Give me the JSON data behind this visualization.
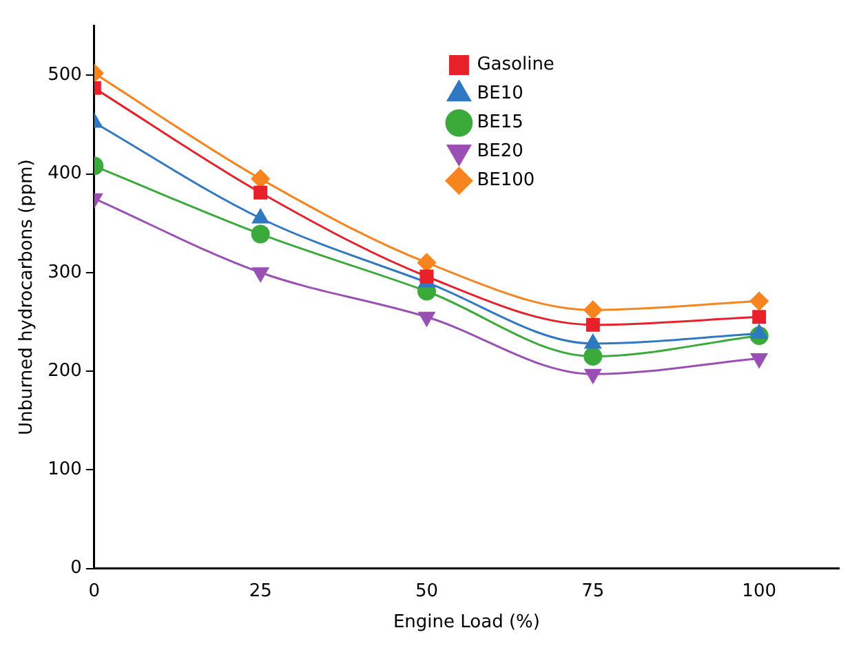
{
  "chart_data": {
    "type": "line",
    "xlabel": "Engine Load (%)",
    "ylabel": "Unburned hydrocarbons (ppm)",
    "x": [
      0,
      25,
      50,
      75,
      100
    ],
    "series": [
      {
        "name": "Gasoline",
        "color": "#e8202a",
        "marker": "square",
        "values": [
          487,
          381,
          296,
          247,
          255
        ]
      },
      {
        "name": "BE10",
        "color": "#2f78c2",
        "marker": "triangle",
        "values": [
          452,
          355,
          290,
          228,
          238
        ]
      },
      {
        "name": "BE15",
        "color": "#3aaa3a",
        "marker": "circle",
        "values": [
          408,
          339,
          281,
          215,
          236
        ]
      },
      {
        "name": "BE20",
        "color": "#9b4fb5",
        "marker": "triangle-down",
        "values": [
          375,
          300,
          255,
          197,
          213
        ]
      },
      {
        "name": "BE100",
        "color": "#f7841e",
        "marker": "diamond",
        "values": [
          502,
          395,
          310,
          262,
          271
        ]
      }
    ],
    "xlim": [
      0,
      112
    ],
    "xticks": [
      0,
      25,
      50,
      75,
      100
    ],
    "ylim": [
      0,
      550
    ],
    "yticks": [
      0,
      100,
      200,
      300,
      400,
      500
    ],
    "grid": false,
    "legend": "top right"
  }
}
